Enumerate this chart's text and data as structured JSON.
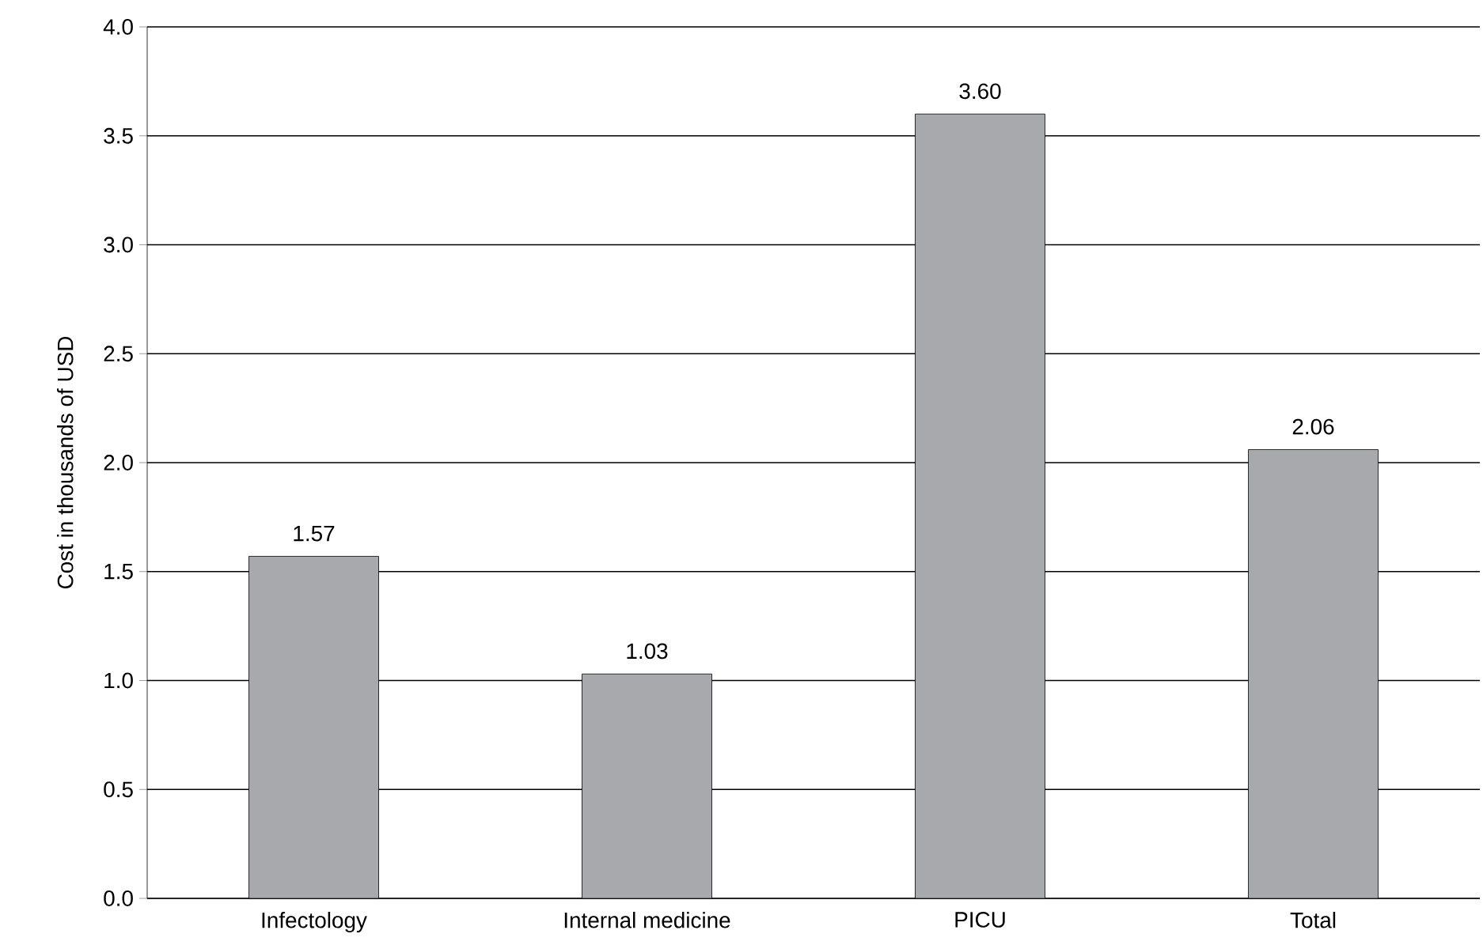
{
  "chart_data": {
    "type": "bar",
    "ylabel": "Cost in thousands of USD",
    "categories": [
      "Infectology",
      "Internal medicine",
      "PICU",
      "Total"
    ],
    "values": [
      1.57,
      1.03,
      3.6,
      2.06
    ],
    "value_labels": [
      "1.57",
      "1.03",
      "3.60",
      "2.06"
    ],
    "color": "#a7a9ac",
    "ylim": [
      0,
      4
    ],
    "yticks": [
      {
        "value": 0,
        "label": "0.0"
      },
      {
        "value": 0.5,
        "label": "0.5"
      },
      {
        "value": 1,
        "label": "1.0"
      },
      {
        "value": 1.5,
        "label": "1.5"
      },
      {
        "value": 2,
        "label": "2.0"
      },
      {
        "value": 2.5,
        "label": "2.5"
      },
      {
        "value": 3,
        "label": "3.0"
      },
      {
        "value": 3.5,
        "label": "3.5"
      },
      {
        "value": 4,
        "label": "4.0"
      }
    ],
    "grid": "y"
  }
}
